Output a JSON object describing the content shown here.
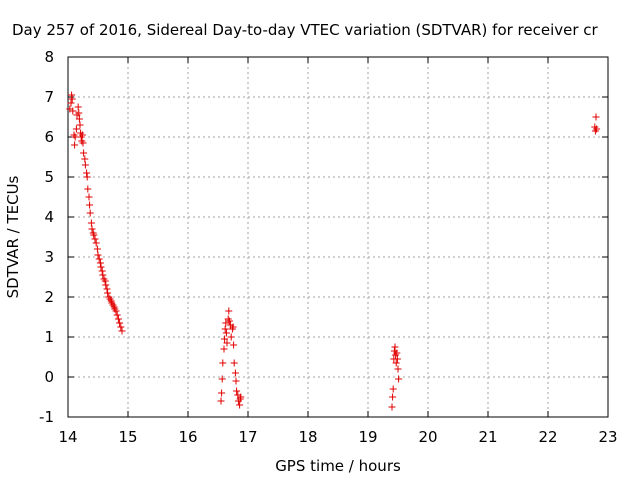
{
  "chart_data": {
    "type": "scatter",
    "title": "Day 257 of 2016, Sidereal Day-to-day VTEC variation (SDTVAR) for receiver cr",
    "xlabel": "GPS time / hours",
    "ylabel": "SDTVAR / TECUs",
    "xlim": [
      14,
      23
    ],
    "ylim": [
      -1,
      8
    ],
    "xticks": [
      "14",
      "15",
      "16",
      "17",
      "18",
      "19",
      "20",
      "21",
      "22",
      "23"
    ],
    "yticks": [
      "-1",
      "0",
      "1",
      "2",
      "3",
      "4",
      "5",
      "6",
      "7",
      "8"
    ],
    "grid": true,
    "marker": "+",
    "color": "#e00000",
    "series": [
      {
        "name": "SDTVAR",
        "points": [
          [
            14.03,
            6.7
          ],
          [
            14.05,
            6.85
          ],
          [
            14.06,
            7.05
          ],
          [
            14.07,
            6.95
          ],
          [
            14.08,
            6.65
          ],
          [
            14.1,
            6.05
          ],
          [
            14.11,
            5.8
          ],
          [
            14.12,
            6.0
          ],
          [
            14.14,
            6.2
          ],
          [
            14.15,
            6.55
          ],
          [
            14.17,
            6.75
          ],
          [
            14.18,
            6.6
          ],
          [
            14.19,
            6.45
          ],
          [
            14.2,
            6.3
          ],
          [
            14.21,
            6.1
          ],
          [
            14.22,
            6.0
          ],
          [
            14.23,
            5.9
          ],
          [
            14.24,
            6.05
          ],
          [
            14.25,
            5.85
          ],
          [
            14.26,
            5.6
          ],
          [
            14.28,
            5.45
          ],
          [
            14.29,
            5.3
          ],
          [
            14.31,
            5.1
          ],
          [
            14.32,
            5.0
          ],
          [
            14.33,
            4.7
          ],
          [
            14.35,
            4.5
          ],
          [
            14.36,
            4.3
          ],
          [
            14.37,
            4.1
          ],
          [
            14.39,
            3.85
          ],
          [
            14.4,
            3.7
          ],
          [
            14.42,
            3.6
          ],
          [
            14.43,
            3.55
          ],
          [
            14.45,
            3.45
          ],
          [
            14.47,
            3.35
          ],
          [
            14.49,
            3.2
          ],
          [
            14.5,
            3.05
          ],
          [
            14.52,
            2.95
          ],
          [
            14.54,
            2.85
          ],
          [
            14.55,
            2.75
          ],
          [
            14.57,
            2.65
          ],
          [
            14.58,
            2.55
          ],
          [
            14.6,
            2.45
          ],
          [
            14.62,
            2.4
          ],
          [
            14.63,
            2.3
          ],
          [
            14.65,
            2.2
          ],
          [
            14.66,
            2.1
          ],
          [
            14.68,
            2.0
          ],
          [
            14.7,
            1.95
          ],
          [
            14.72,
            1.9
          ],
          [
            14.73,
            1.85
          ],
          [
            14.75,
            1.8
          ],
          [
            14.77,
            1.75
          ],
          [
            14.78,
            1.7
          ],
          [
            14.8,
            1.65
          ],
          [
            14.82,
            1.55
          ],
          [
            14.84,
            1.45
          ],
          [
            14.86,
            1.35
          ],
          [
            14.88,
            1.25
          ],
          [
            14.9,
            1.15
          ],
          [
            16.55,
            -0.6
          ],
          [
            16.56,
            -0.4
          ],
          [
            16.57,
            -0.05
          ],
          [
            16.58,
            0.35
          ],
          [
            16.6,
            0.7
          ],
          [
            16.61,
            0.95
          ],
          [
            16.62,
            1.2
          ],
          [
            16.63,
            1.35
          ],
          [
            16.64,
            1.1
          ],
          [
            16.65,
            0.85
          ],
          [
            16.67,
            1.45
          ],
          [
            16.68,
            1.65
          ],
          [
            16.69,
            1.4
          ],
          [
            16.71,
            1.3
          ],
          [
            16.72,
            1.0
          ],
          [
            16.74,
            1.2
          ],
          [
            16.75,
            1.25
          ],
          [
            16.76,
            0.8
          ],
          [
            16.77,
            0.35
          ],
          [
            16.79,
            0.1
          ],
          [
            16.8,
            -0.1
          ],
          [
            16.81,
            -0.35
          ],
          [
            16.83,
            -0.45
          ],
          [
            16.84,
            -0.6
          ],
          [
            16.86,
            -0.7
          ],
          [
            16.87,
            -0.55
          ],
          [
            16.88,
            -0.5
          ],
          [
            19.4,
            -0.75
          ],
          [
            19.41,
            -0.5
          ],
          [
            19.42,
            -0.3
          ],
          [
            19.43,
            0.45
          ],
          [
            19.44,
            0.65
          ],
          [
            19.45,
            0.75
          ],
          [
            19.46,
            0.55
          ],
          [
            19.47,
            0.35
          ],
          [
            19.48,
            0.6
          ],
          [
            19.49,
            0.45
          ],
          [
            19.5,
            0.2
          ],
          [
            19.51,
            -0.05
          ],
          [
            22.78,
            6.25
          ],
          [
            22.79,
            6.15
          ],
          [
            22.8,
            6.5
          ],
          [
            22.81,
            6.2
          ]
        ]
      }
    ]
  }
}
